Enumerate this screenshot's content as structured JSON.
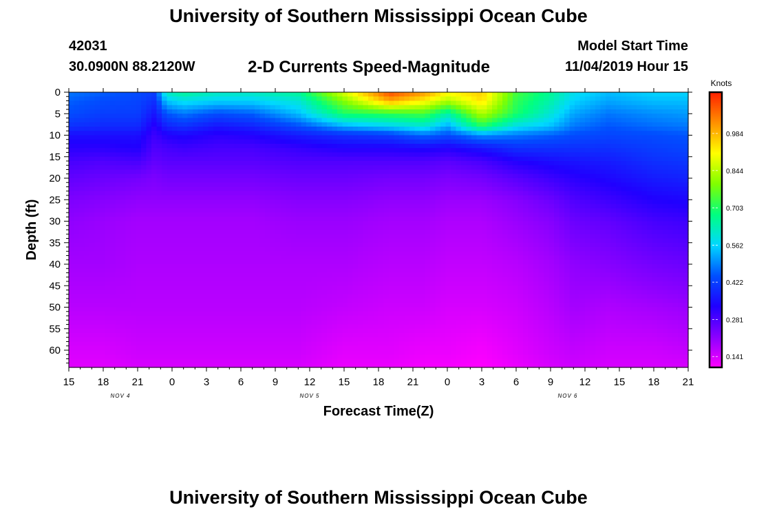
{
  "header": {
    "title": "University of Southern Mississippi Ocean Cube",
    "station_id": "42031",
    "coordinates": "30.0900N 88.2120W",
    "subtitle": "2-D Currents Speed-Magnitude",
    "model_start_label": "Model Start Time",
    "model_start_value": "11/04/2019 Hour 15",
    "footer_title": "University of Southern Mississippi Ocean Cube"
  },
  "chart_data": {
    "type": "heatmap",
    "title": "2-D Currents Speed-Magnitude",
    "xlabel": "Forecast Time(Z)",
    "ylabel": "Depth (ft)",
    "x_range_hours": [
      0,
      54
    ],
    "x_tick_labels": [
      "15",
      "18",
      "21",
      "0",
      "3",
      "6",
      "9",
      "12",
      "15",
      "18",
      "21",
      "0",
      "3",
      "6",
      "9",
      "12",
      "15",
      "18",
      "21"
    ],
    "date_labels": [
      {
        "label": "NOV 4",
        "hour": 4.5
      },
      {
        "label": "NOV 5",
        "hour": 21
      },
      {
        "label": "NOV 6",
        "hour": 43.5
      }
    ],
    "ylim": [
      0,
      64
    ],
    "y_ticks": [
      0,
      5,
      10,
      15,
      20,
      25,
      30,
      35,
      40,
      45,
      50,
      55,
      60
    ],
    "colorbar": {
      "units": "Knots",
      "min": 0.1,
      "max": 1.14,
      "tick_values": [
        0.141,
        0.281,
        0.422,
        0.562,
        0.703,
        0.844,
        0.984
      ],
      "tick_labels": [
        "0.141",
        "0.281",
        "0.422",
        "0.562",
        "0.703",
        "0.844",
        "0.984"
      ],
      "colors": [
        "#ff00ff",
        "#8a00ff",
        "#2000ff",
        "#0050ff",
        "#00d8ff",
        "#00ff80",
        "#80ff00",
        "#ffff00",
        "#ff9000",
        "#ff2000"
      ]
    },
    "hours": [
      0,
      3,
      6,
      7.5,
      8.5,
      10,
      13,
      16,
      20,
      24,
      28,
      31,
      33,
      36,
      39,
      42,
      44,
      47,
      51,
      54
    ],
    "speed_profile_depths_ft": [
      0,
      2,
      5,
      8,
      10,
      13,
      16,
      20,
      25,
      30,
      40,
      50,
      60,
      64
    ],
    "speed_profiles_knots": [
      [
        0.48,
        0.46,
        0.44,
        0.4,
        0.35,
        0.32,
        0.29,
        0.26,
        0.23,
        0.21,
        0.19,
        0.17,
        0.14,
        0.13
      ],
      [
        0.46,
        0.44,
        0.42,
        0.39,
        0.35,
        0.32,
        0.28,
        0.25,
        0.22,
        0.2,
        0.19,
        0.17,
        0.14,
        0.13
      ],
      [
        0.44,
        0.43,
        0.42,
        0.39,
        0.35,
        0.33,
        0.29,
        0.24,
        0.21,
        0.19,
        0.18,
        0.17,
        0.15,
        0.14
      ],
      [
        0.42,
        0.4,
        0.36,
        0.32,
        0.3,
        0.28,
        0.26,
        0.23,
        0.21,
        0.19,
        0.18,
        0.17,
        0.15,
        0.14
      ],
      [
        0.62,
        0.55,
        0.45,
        0.38,
        0.33,
        0.29,
        0.27,
        0.24,
        0.21,
        0.19,
        0.18,
        0.17,
        0.15,
        0.14
      ],
      [
        0.66,
        0.58,
        0.48,
        0.4,
        0.34,
        0.3,
        0.27,
        0.24,
        0.21,
        0.19,
        0.18,
        0.17,
        0.15,
        0.14
      ],
      [
        0.62,
        0.56,
        0.44,
        0.36,
        0.32,
        0.29,
        0.27,
        0.24,
        0.21,
        0.19,
        0.18,
        0.17,
        0.15,
        0.14
      ],
      [
        0.62,
        0.56,
        0.46,
        0.38,
        0.33,
        0.29,
        0.27,
        0.24,
        0.21,
        0.19,
        0.18,
        0.17,
        0.15,
        0.14
      ],
      [
        0.66,
        0.6,
        0.54,
        0.44,
        0.37,
        0.31,
        0.28,
        0.25,
        0.22,
        0.2,
        0.18,
        0.17,
        0.15,
        0.14
      ],
      [
        0.88,
        0.8,
        0.7,
        0.52,
        0.4,
        0.33,
        0.28,
        0.25,
        0.22,
        0.2,
        0.18,
        0.16,
        0.13,
        0.12
      ],
      [
        1.1,
        1.0,
        0.72,
        0.56,
        0.42,
        0.33,
        0.28,
        0.24,
        0.21,
        0.19,
        0.17,
        0.15,
        0.13,
        0.12
      ],
      [
        1.02,
        0.92,
        0.74,
        0.6,
        0.47,
        0.34,
        0.28,
        0.24,
        0.21,
        0.19,
        0.17,
        0.15,
        0.12,
        0.11
      ],
      [
        0.92,
        0.84,
        0.64,
        0.52,
        0.44,
        0.33,
        0.27,
        0.23,
        0.2,
        0.18,
        0.16,
        0.14,
        0.12,
        0.11
      ],
      [
        0.96,
        0.94,
        0.84,
        0.7,
        0.5,
        0.36,
        0.29,
        0.24,
        0.2,
        0.18,
        0.16,
        0.14,
        0.11,
        0.1
      ],
      [
        0.74,
        0.72,
        0.7,
        0.58,
        0.48,
        0.4,
        0.33,
        0.27,
        0.22,
        0.2,
        0.17,
        0.15,
        0.13,
        0.12
      ],
      [
        0.66,
        0.64,
        0.6,
        0.54,
        0.46,
        0.4,
        0.35,
        0.3,
        0.25,
        0.22,
        0.19,
        0.17,
        0.15,
        0.14
      ],
      [
        0.58,
        0.56,
        0.52,
        0.48,
        0.44,
        0.4,
        0.36,
        0.32,
        0.28,
        0.25,
        0.21,
        0.19,
        0.16,
        0.15
      ],
      [
        0.54,
        0.52,
        0.48,
        0.45,
        0.43,
        0.4,
        0.37,
        0.34,
        0.3,
        0.26,
        0.22,
        0.18,
        0.15,
        0.14
      ],
      [
        0.56,
        0.54,
        0.5,
        0.47,
        0.44,
        0.42,
        0.4,
        0.37,
        0.33,
        0.29,
        0.24,
        0.19,
        0.15,
        0.14
      ],
      [
        0.56,
        0.54,
        0.51,
        0.48,
        0.45,
        0.43,
        0.41,
        0.38,
        0.34,
        0.3,
        0.25,
        0.2,
        0.16,
        0.14
      ]
    ]
  }
}
